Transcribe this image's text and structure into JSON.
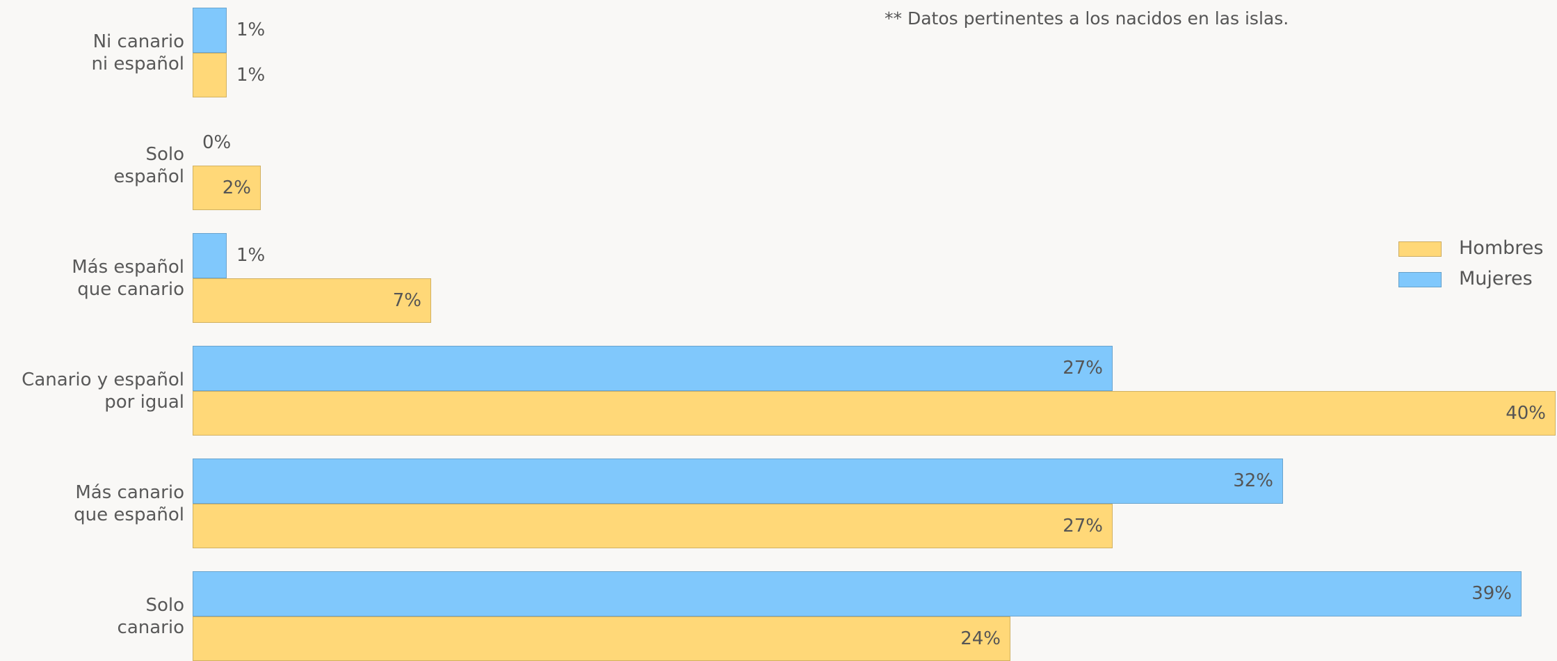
{
  "chart_data": {
    "type": "bar",
    "orientation": "horizontal",
    "note": "** Datos pertinentes a los nacidos en las islas.",
    "categories": [
      "Ni canario\nni español",
      "Solo\nespañol",
      "Más español\nque canario",
      "Canario y español\npor igual",
      "Más canario\nque español",
      "Solo\ncanario"
    ],
    "series": [
      {
        "name": "Mujeres",
        "color": "#80c8fc",
        "values": [
          1,
          0,
          1,
          27,
          32,
          39
        ],
        "value_labels": [
          "1%",
          "0%",
          "1%",
          "27%",
          "32%",
          "39%"
        ]
      },
      {
        "name": "Hombres",
        "color": "#ffd878",
        "values": [
          1,
          2,
          7,
          40,
          27,
          24
        ],
        "value_labels": [
          "1%",
          "2%",
          "7%",
          "40%",
          "27%",
          "24%"
        ]
      }
    ],
    "legend": "right"
  }
}
